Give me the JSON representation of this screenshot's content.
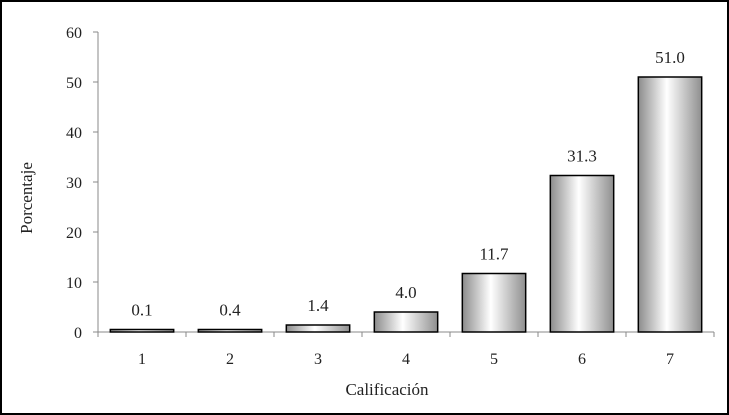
{
  "chart_data": {
    "type": "bar",
    "categories": [
      "1",
      "2",
      "3",
      "4",
      "5",
      "6",
      "7"
    ],
    "values": [
      0.1,
      0.4,
      1.4,
      4.0,
      11.7,
      31.3,
      51.0
    ],
    "data_labels": [
      "0.1",
      "0.4",
      "1.4",
      "4.0",
      "11.7",
      "31.3",
      "51.0"
    ],
    "xlabel": "Calificación",
    "ylabel": "Porcentaje",
    "ylim": [
      0,
      60
    ],
    "yticks": [
      0,
      10,
      20,
      30,
      40,
      50,
      60
    ],
    "ytick_labels": [
      "0",
      "10",
      "20",
      "30",
      "40",
      "50",
      "60"
    ],
    "grid": false,
    "bar_fill": "gradient grey",
    "bar_stroke": "#000000"
  }
}
